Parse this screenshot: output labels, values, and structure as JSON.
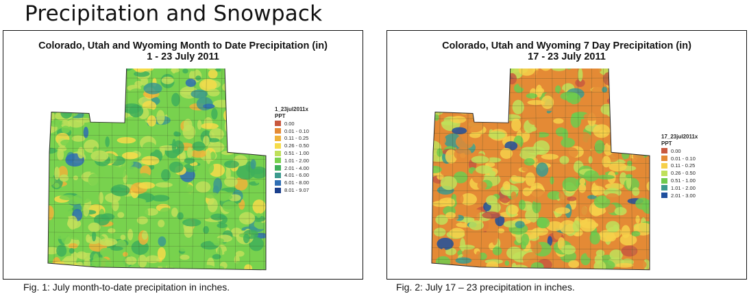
{
  "heading": "Precipitation and Snowpack",
  "maps": [
    {
      "title_line1": "Colorado, Utah and Wyoming Month to Date Precipitation (in)",
      "title_line2": "1 - 23 July 2011",
      "legend_title": "1_23jul2011x",
      "legend_subtitle": "PPT",
      "legend": [
        {
          "label": "0.00",
          "color": "#c8583e"
        },
        {
          "label": "0.01 - 0.10",
          "color": "#e48a35"
        },
        {
          "label": "0.11 - 0.25",
          "color": "#f0b33a"
        },
        {
          "label": "0.26 - 0.50",
          "color": "#f6dc4a"
        },
        {
          "label": "0.51 - 1.00",
          "color": "#bfe05a"
        },
        {
          "label": "1.01 - 2.00",
          "color": "#78d24e"
        },
        {
          "label": "2.01 - 4.00",
          "color": "#3fb05a"
        },
        {
          "label": "4.01 - 6.00",
          "color": "#3c9a8e"
        },
        {
          "label": "6.01 - 8.00",
          "color": "#2f6fb4"
        },
        {
          "label": "8.01 - 9.07",
          "color": "#1b3f8c"
        }
      ],
      "caption": "Fig. 1: July month-to-date precipitation in inches."
    },
    {
      "title_line1": "Colorado, Utah and Wyoming 7 Day Precipitation (in)",
      "title_line2": "17 - 23 July 2011",
      "legend_title": "17_23jul2011x",
      "legend_subtitle": "PPT",
      "legend": [
        {
          "label": "0.00",
          "color": "#c8583e"
        },
        {
          "label": "0.01 - 0.10",
          "color": "#e48a35"
        },
        {
          "label": "0.11 - 0.25",
          "color": "#f6d04a"
        },
        {
          "label": "0.26 - 0.50",
          "color": "#bfe05a"
        },
        {
          "label": "0.51 - 1.00",
          "color": "#6fcb4d"
        },
        {
          "label": "1.01 - 2.00",
          "color": "#3c9a8e"
        },
        {
          "label": "2.01 - 3.00",
          "color": "#1f4f9e"
        }
      ],
      "caption": "Fig. 2:  July 17 – 23 precipitation in inches."
    }
  ]
}
